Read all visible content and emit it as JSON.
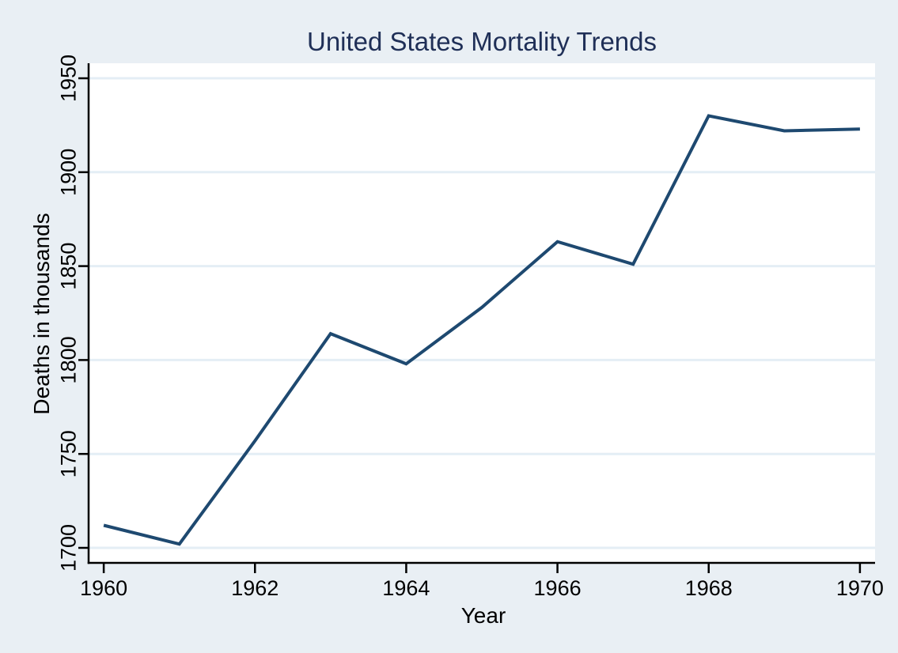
{
  "chart_data": {
    "type": "line",
    "title": "United States Mortality Trends",
    "xlabel": "Year",
    "ylabel": "Deaths in thousands",
    "x": [
      1960,
      1961,
      1962,
      1963,
      1964,
      1965,
      1966,
      1967,
      1968,
      1969,
      1970
    ],
    "values": [
      1712,
      1702,
      1757,
      1814,
      1798,
      1828,
      1863,
      1851,
      1930,
      1922,
      1923
    ],
    "xticks": [
      1960,
      1962,
      1964,
      1966,
      1968,
      1970
    ],
    "yticks": [
      1700,
      1750,
      1800,
      1850,
      1900,
      1950
    ],
    "xlim": [
      1959.8,
      1970.2
    ],
    "ylim": [
      1692,
      1958
    ],
    "grid": "horizontal",
    "legend": "none"
  },
  "style": {
    "background_color": "#e9eff4",
    "plot_background_color": "#ffffff",
    "grid_color": "#e4eef5",
    "axis_color": "#000000",
    "line_color": "#1e4970",
    "title_color": "#1f2f57"
  }
}
